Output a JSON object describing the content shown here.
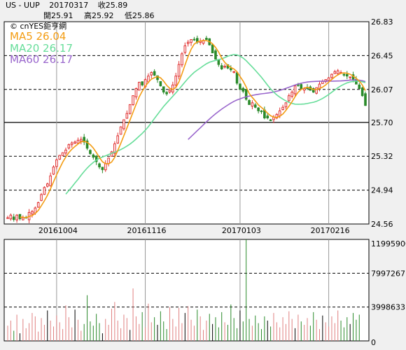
{
  "header": {
    "symbol": "US - UUP",
    "date": "20170317",
    "close": "收25.89",
    "open": "開25.91",
    "high": "高25.92",
    "low": "低25.86"
  },
  "legend": {
    "source": "© cnYES鉅亨網",
    "ma5": "MA5 26.04",
    "ma20": "MA20 26.17",
    "ma60": "MA60 26.17"
  },
  "colors": {
    "up": "#e03030",
    "down": "#2a8a2a",
    "ma5": "#f39c12",
    "ma20": "#66dd99",
    "ma60": "#9966cc"
  },
  "chart_data": [
    {
      "type": "candlestick",
      "title": "US - UUP",
      "ylim": [
        24.56,
        26.83
      ],
      "y_ticks": [
        "26.83",
        "26.45",
        "26.07",
        "25.70",
        "25.32",
        "24.94",
        "24.56"
      ],
      "x_ticks": [
        {
          "label": "20161004",
          "index": 16
        },
        {
          "label": "20161116",
          "index": 45
        },
        {
          "label": "20170103",
          "index": 76
        },
        {
          "label": "20170216",
          "index": 105
        }
      ],
      "close": [
        24.63,
        24.66,
        24.61,
        24.66,
        24.62,
        24.63,
        24.63,
        24.69,
        24.7,
        24.74,
        24.8,
        24.89,
        24.97,
        25.01,
        25.1,
        25.2,
        25.28,
        25.33,
        25.36,
        25.39,
        25.45,
        25.47,
        25.48,
        25.5,
        25.51,
        25.48,
        25.41,
        25.35,
        25.31,
        25.26,
        25.2,
        25.17,
        25.24,
        25.3,
        25.37,
        25.46,
        25.55,
        25.65,
        25.73,
        25.8,
        25.9,
        26.0,
        26.08,
        26.15,
        26.12,
        26.18,
        26.22,
        26.26,
        26.23,
        26.18,
        26.11,
        26.04,
        26.02,
        26.06,
        26.12,
        26.22,
        26.35,
        26.47,
        26.56,
        26.6,
        26.63,
        26.63,
        26.6,
        26.61,
        26.62,
        26.63,
        26.57,
        26.48,
        26.41,
        26.35,
        26.3,
        26.33,
        26.31,
        26.29,
        26.27,
        26.14,
        26.07,
        26.05,
        25.96,
        25.9,
        25.92,
        25.87,
        25.83,
        25.82,
        25.75,
        25.75,
        25.72,
        25.76,
        25.79,
        25.83,
        25.87,
        25.92,
        26.0,
        26.04,
        26.11,
        26.12,
        26.08,
        26.08,
        26.08,
        26.06,
        26.04,
        26.09,
        26.13,
        26.16,
        26.18,
        26.2,
        26.24,
        26.27,
        26.28,
        26.26,
        26.23,
        26.22,
        26.21,
        26.18,
        26.13,
        26.08,
        26.0,
        25.89
      ],
      "open_offsets": "close differs by a few cents per day",
      "ma5_last": 26.04,
      "ma20_last": 26.17,
      "ma60_last": 26.17
    },
    {
      "type": "bar",
      "title": "",
      "ylim": [
        0,
        11995900
      ],
      "y_ticks": [
        "11995900",
        "7997267",
        "3998633",
        "0"
      ],
      "values": [
        1800000,
        2400000,
        1200000,
        3100000,
        900000,
        2600000,
        1500000,
        2100000,
        3300000,
        2900000,
        1100000,
        2700000,
        1900000,
        3600000,
        2400000,
        1700000,
        3000000,
        2200000,
        1400000,
        4200000,
        2800000,
        1600000,
        3700000,
        2500000,
        1200000,
        2000000,
        5400000,
        2300000,
        1800000,
        3200000,
        2100000,
        900000,
        2600000,
        1900000,
        3800000,
        4600000,
        2400000,
        1500000,
        3100000,
        2700000,
        1300000,
        6200000,
        2900000,
        2000000,
        3400000,
        1600000,
        4400000,
        2200000,
        2800000,
        1900000,
        3500000,
        2300000,
        1400000,
        4000000,
        2600000,
        1700000,
        3900000,
        2100000,
        3300000,
        4100000,
        2500000,
        1800000,
        3700000,
        2900000,
        1300000,
        2400000,
        3200000,
        2000000,
        2800000,
        1600000,
        3400000,
        2200000,
        1900000,
        4300000,
        2700000,
        1500000,
        3600000,
        2300000,
        11995900,
        2600000,
        1800000,
        3000000,
        2100000,
        1400000,
        2900000,
        2400000,
        1700000,
        3300000,
        2200000,
        1600000,
        2800000,
        2000000,
        3500000,
        2600000,
        1500000,
        3100000,
        2300000,
        1900000,
        2700000,
        1800000,
        3400000,
        2500000,
        1400000,
        3000000,
        2200000,
        1700000,
        2900000,
        2100000,
        3600000,
        2400000,
        1600000,
        2800000,
        2000000,
        3300000,
        2500000,
        3100000
      ]
    }
  ]
}
